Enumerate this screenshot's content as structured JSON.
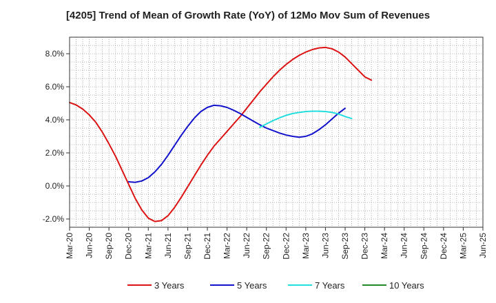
{
  "chart_data": {
    "type": "line",
    "title": "[4205]  Trend of Mean of Growth Rate (YoY) of 12Mo Mov Sum of Revenues",
    "xlabel": "",
    "ylabel": "",
    "x_tick_labels": [
      "Mar-20",
      "Jun-20",
      "Sep-20",
      "Dec-20",
      "Mar-21",
      "Jun-21",
      "Sep-21",
      "Dec-21",
      "Mar-22",
      "Jun-22",
      "Sep-22",
      "Dec-22",
      "Mar-23",
      "Jun-23",
      "Sep-23",
      "Dec-23",
      "Mar-24",
      "Jun-24",
      "Sep-24",
      "Dec-24",
      "Mar-25",
      "Jun-25"
    ],
    "y_ticks": [
      -2.0,
      0.0,
      2.0,
      4.0,
      6.0,
      8.0
    ],
    "y_tick_labels": [
      "-2.0%",
      "0.0%",
      "2.0%",
      "4.0%",
      "6.0%",
      "8.0%"
    ],
    "ylim": [
      -2.5,
      9.0
    ],
    "grid": true,
    "legend_position": "bottom",
    "series": [
      {
        "name": "3 Years",
        "color": "#dd1111",
        "start_index": 0,
        "values": [
          5.05,
          4.9,
          4.65,
          4.3,
          3.85,
          3.25,
          2.55,
          1.8,
          0.95,
          0.1,
          -0.75,
          -1.45,
          -1.95,
          -2.15,
          -2.1,
          -1.8,
          -1.3,
          -0.7,
          -0.05,
          0.6,
          1.25,
          1.85,
          2.4,
          2.85,
          3.3,
          3.75,
          4.2,
          4.7,
          5.2,
          5.7,
          6.15,
          6.6,
          7.0,
          7.35,
          7.65,
          7.9,
          8.1,
          8.25,
          8.35,
          8.38,
          8.3,
          8.1,
          7.8,
          7.4,
          7.0,
          6.6,
          6.4
        ]
      },
      {
        "name": "5 Years",
        "color": "#1111cc",
        "start_index": 9,
        "values": [
          0.25,
          0.22,
          0.3,
          0.5,
          0.85,
          1.3,
          1.85,
          2.45,
          3.05,
          3.6,
          4.1,
          4.5,
          4.75,
          4.88,
          4.85,
          4.75,
          4.58,
          4.38,
          4.15,
          3.92,
          3.7,
          3.5,
          3.35,
          3.2,
          3.08,
          3.0,
          2.95,
          3.0,
          3.15,
          3.4,
          3.7,
          4.05,
          4.4,
          4.7
        ]
      },
      {
        "name": "7 Years",
        "color": "#22dddd",
        "start_index": 29,
        "values": [
          3.55,
          3.75,
          3.95,
          4.12,
          4.27,
          4.38,
          4.45,
          4.5,
          4.52,
          4.52,
          4.5,
          4.45,
          4.35,
          4.2,
          4.08
        ]
      },
      {
        "name": "10 Years",
        "color": "#228822",
        "start_index": 0,
        "values": []
      }
    ]
  }
}
